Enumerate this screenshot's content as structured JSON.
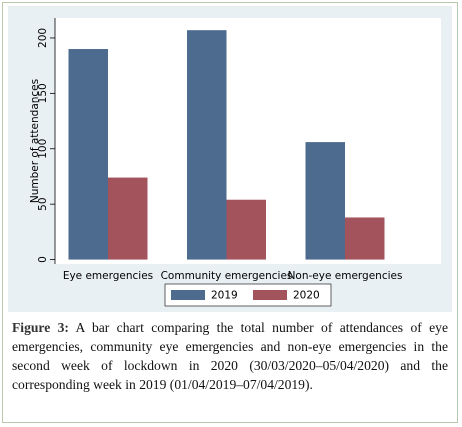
{
  "chart_data": {
    "type": "bar",
    "y_label": "Number of attendances",
    "categories": [
      "Eye emergencies",
      "Community emergencies",
      "Non-eye emergencies"
    ],
    "series": [
      {
        "name": "2019",
        "color": "#4d6a8f",
        "values": [
          190,
          207,
          106
        ]
      },
      {
        "name": "2020",
        "color": "#a3535c",
        "values": [
          74,
          54,
          38
        ]
      }
    ],
    "ylim": [
      -4,
      218
    ],
    "yticks": [
      0,
      50,
      100,
      150,
      200
    ],
    "grid": false,
    "legend": "bottom"
  },
  "caption": {
    "label": "Figure 3:",
    "text": "A bar chart comparing the total number of attendances of eye emergencies, community eye emergencies and non-eye emergencies in the second week of lockdown in 2020 (30/03/2020–05/04/2020)  and the corresponding week in 2019 (01/04/2019–07/04/2019)."
  }
}
